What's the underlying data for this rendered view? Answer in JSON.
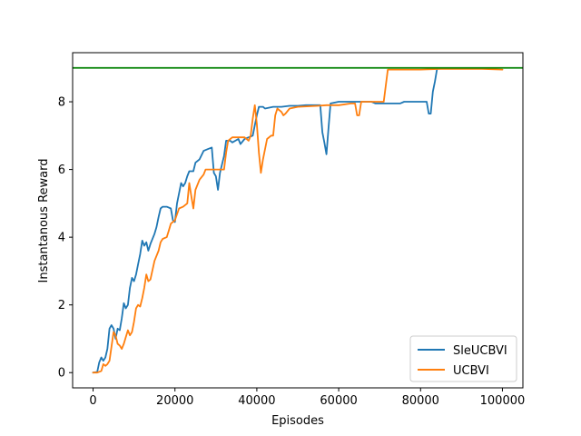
{
  "chart_data": {
    "type": "line",
    "xlabel": "Episodes",
    "ylabel": "Instantanous Reward",
    "xlim": [
      -5000,
      105000
    ],
    "ylim": [
      -0.45,
      9.45
    ],
    "xticks": [
      0,
      20000,
      40000,
      60000,
      80000,
      100000
    ],
    "xtick_labels": [
      "0",
      "20000",
      "40000",
      "60000",
      "80000",
      "100000"
    ],
    "yticks": [
      0,
      2,
      4,
      6,
      8
    ],
    "ytick_labels": [
      "0",
      "2",
      "4",
      "6",
      "8"
    ],
    "grid": false,
    "legend_position": "lower-right",
    "reference_line": {
      "y": 9.0,
      "color": "#008000"
    },
    "series": [
      {
        "name": "SleUCBVI",
        "color": "#1f77b4",
        "points": [
          [
            0,
            0.0
          ],
          [
            1000,
            0.02
          ],
          [
            1500,
            0.3
          ],
          [
            2000,
            0.45
          ],
          [
            2500,
            0.35
          ],
          [
            3000,
            0.45
          ],
          [
            3500,
            0.7
          ],
          [
            4000,
            1.3
          ],
          [
            4500,
            1.4
          ],
          [
            5000,
            1.3
          ],
          [
            5500,
            1.0
          ],
          [
            6000,
            1.3
          ],
          [
            6500,
            1.25
          ],
          [
            7000,
            1.6
          ],
          [
            7500,
            2.05
          ],
          [
            8000,
            1.9
          ],
          [
            8500,
            2.0
          ],
          [
            9000,
            2.5
          ],
          [
            9500,
            2.8
          ],
          [
            10000,
            2.7
          ],
          [
            10500,
            2.9
          ],
          [
            11000,
            3.2
          ],
          [
            11500,
            3.5
          ],
          [
            12000,
            3.9
          ],
          [
            12500,
            3.75
          ],
          [
            13000,
            3.85
          ],
          [
            13500,
            3.6
          ],
          [
            14000,
            3.8
          ],
          [
            15000,
            4.1
          ],
          [
            15500,
            4.3
          ],
          [
            16000,
            4.6
          ],
          [
            16500,
            4.85
          ],
          [
            17000,
            4.9
          ],
          [
            18000,
            4.9
          ],
          [
            19000,
            4.85
          ],
          [
            19500,
            4.5
          ],
          [
            20000,
            4.45
          ],
          [
            20500,
            5.0
          ],
          [
            21500,
            5.6
          ],
          [
            22000,
            5.5
          ],
          [
            22500,
            5.6
          ],
          [
            23000,
            5.8
          ],
          [
            23500,
            5.95
          ],
          [
            24500,
            5.95
          ],
          [
            25000,
            6.2
          ],
          [
            26000,
            6.3
          ],
          [
            27000,
            6.55
          ],
          [
            28000,
            6.6
          ],
          [
            29000,
            6.65
          ],
          [
            29500,
            5.9
          ],
          [
            30000,
            5.8
          ],
          [
            30500,
            5.4
          ],
          [
            31000,
            5.9
          ],
          [
            32000,
            6.4
          ],
          [
            32500,
            6.85
          ],
          [
            33500,
            6.85
          ],
          [
            34000,
            6.8
          ],
          [
            35500,
            6.9
          ],
          [
            36000,
            6.75
          ],
          [
            37000,
            6.9
          ],
          [
            38000,
            6.95
          ],
          [
            39000,
            7.0
          ],
          [
            40000,
            7.6
          ],
          [
            40500,
            7.85
          ],
          [
            41500,
            7.85
          ],
          [
            42000,
            7.8
          ],
          [
            44000,
            7.85
          ],
          [
            46000,
            7.85
          ],
          [
            48000,
            7.88
          ],
          [
            50000,
            7.88
          ],
          [
            52000,
            7.9
          ],
          [
            54000,
            7.9
          ],
          [
            55500,
            7.9
          ],
          [
            56000,
            7.1
          ],
          [
            56500,
            6.8
          ],
          [
            57000,
            6.45
          ],
          [
            57500,
            7.2
          ],
          [
            58000,
            7.95
          ],
          [
            60000,
            8.0
          ],
          [
            62000,
            8.0
          ],
          [
            64000,
            8.0
          ],
          [
            66000,
            8.0
          ],
          [
            68000,
            8.0
          ],
          [
            69000,
            7.95
          ],
          [
            72000,
            7.95
          ],
          [
            75000,
            7.95
          ],
          [
            76000,
            8.0
          ],
          [
            80000,
            8.0
          ],
          [
            81500,
            8.0
          ],
          [
            82000,
            7.65
          ],
          [
            82500,
            7.65
          ],
          [
            83000,
            8.3
          ],
          [
            83500,
            8.6
          ],
          [
            84000,
            8.95
          ]
        ]
      },
      {
        "name": "UCBVI",
        "color": "#ff7f0e",
        "points": [
          [
            0,
            0.0
          ],
          [
            1000,
            0.0
          ],
          [
            2000,
            0.05
          ],
          [
            2500,
            0.25
          ],
          [
            3000,
            0.2
          ],
          [
            3500,
            0.25
          ],
          [
            4000,
            0.35
          ],
          [
            5000,
            1.2
          ],
          [
            5500,
            1.1
          ],
          [
            6000,
            0.85
          ],
          [
            6500,
            0.8
          ],
          [
            7000,
            0.7
          ],
          [
            7500,
            0.85
          ],
          [
            8000,
            1.05
          ],
          [
            8500,
            1.25
          ],
          [
            9000,
            1.1
          ],
          [
            9500,
            1.2
          ],
          [
            10000,
            1.5
          ],
          [
            10500,
            1.9
          ],
          [
            11000,
            2.0
          ],
          [
            11500,
            1.95
          ],
          [
            12000,
            2.2
          ],
          [
            12500,
            2.5
          ],
          [
            13000,
            2.9
          ],
          [
            13500,
            2.7
          ],
          [
            14000,
            2.75
          ],
          [
            15000,
            3.3
          ],
          [
            16000,
            3.6
          ],
          [
            16500,
            3.85
          ],
          [
            17000,
            3.95
          ],
          [
            18000,
            4.0
          ],
          [
            18500,
            4.2
          ],
          [
            19000,
            4.4
          ],
          [
            20000,
            4.5
          ],
          [
            21000,
            4.85
          ],
          [
            22000,
            4.9
          ],
          [
            23000,
            5.0
          ],
          [
            23500,
            5.6
          ],
          [
            24000,
            5.2
          ],
          [
            24500,
            4.85
          ],
          [
            25000,
            5.4
          ],
          [
            26000,
            5.7
          ],
          [
            27000,
            5.85
          ],
          [
            27500,
            6.0
          ],
          [
            29000,
            6.0
          ],
          [
            30000,
            6.0
          ],
          [
            31000,
            6.0
          ],
          [
            32000,
            6.0
          ],
          [
            32500,
            6.5
          ],
          [
            33000,
            6.85
          ],
          [
            34000,
            6.95
          ],
          [
            36000,
            6.95
          ],
          [
            37000,
            6.95
          ],
          [
            38000,
            6.85
          ],
          [
            38500,
            7.0
          ],
          [
            39000,
            7.5
          ],
          [
            39500,
            7.9
          ],
          [
            40000,
            7.35
          ],
          [
            40500,
            6.5
          ],
          [
            41000,
            5.9
          ],
          [
            41500,
            6.3
          ],
          [
            42500,
            6.9
          ],
          [
            43500,
            7.0
          ],
          [
            44000,
            7.0
          ],
          [
            44500,
            7.6
          ],
          [
            45000,
            7.8
          ],
          [
            46000,
            7.7
          ],
          [
            46500,
            7.6
          ],
          [
            47000,
            7.65
          ],
          [
            48000,
            7.8
          ],
          [
            50000,
            7.85
          ],
          [
            55000,
            7.88
          ],
          [
            57000,
            7.9
          ],
          [
            60000,
            7.9
          ],
          [
            63000,
            7.95
          ],
          [
            64000,
            7.95
          ],
          [
            64500,
            7.6
          ],
          [
            65000,
            7.6
          ],
          [
            65500,
            8.0
          ],
          [
            68000,
            8.0
          ],
          [
            71000,
            8.0
          ],
          [
            72000,
            8.95
          ],
          [
            75000,
            8.95
          ],
          [
            80000,
            8.95
          ],
          [
            85000,
            8.97
          ],
          [
            90000,
            8.97
          ],
          [
            95000,
            8.97
          ],
          [
            100000,
            8.95
          ]
        ]
      }
    ]
  }
}
